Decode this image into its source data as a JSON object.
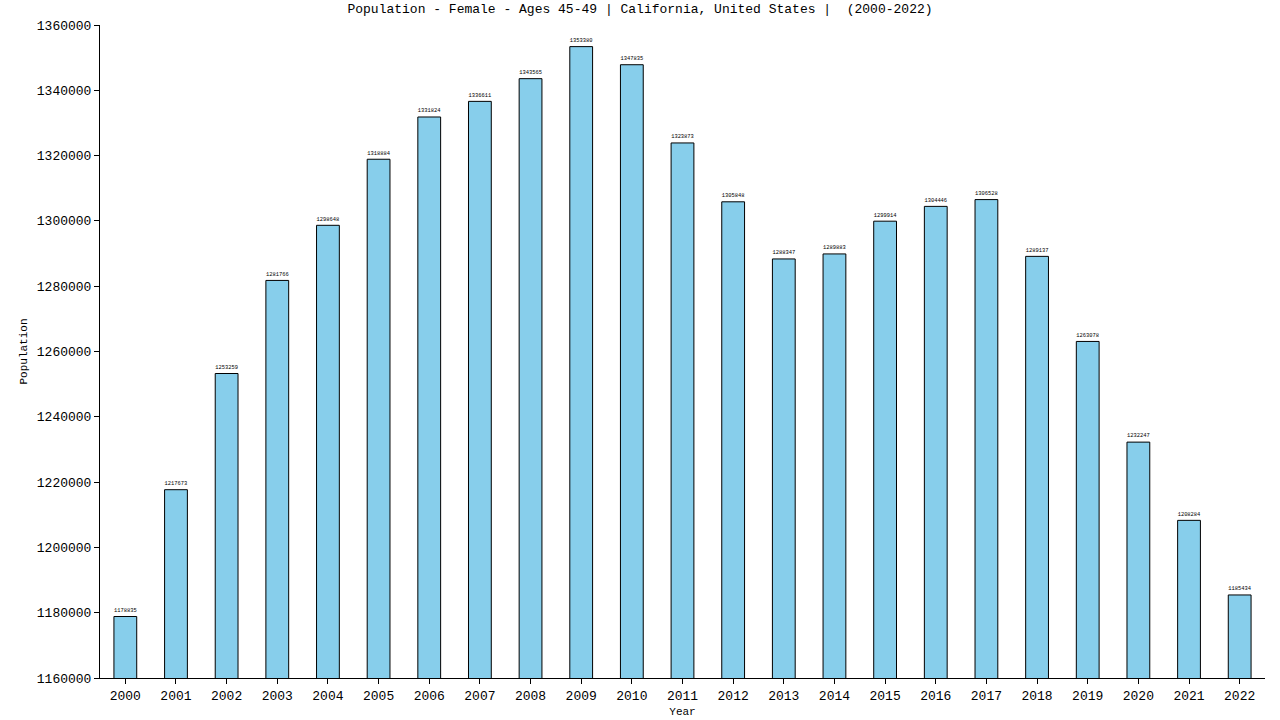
{
  "chart_data": {
    "type": "bar",
    "title": "Population - Female - Ages 45-49 | California, United States |  (2000-2022)",
    "x_label": "Year",
    "y_label": "Population",
    "categories": [
      "2000",
      "2001",
      "2002",
      "2003",
      "2004",
      "2005",
      "2006",
      "2007",
      "2008",
      "2009",
      "2010",
      "2011",
      "2012",
      "2013",
      "2014",
      "2015",
      "2016",
      "2017",
      "2018",
      "2019",
      "2020",
      "2021",
      "2022"
    ],
    "values": [
      1178835,
      1217673,
      1253259,
      1281766,
      1298648,
      1318884,
      1331824,
      1336611,
      1343565,
      1353380,
      1347835,
      1323873,
      1305848,
      1288347,
      1289883,
      1299914,
      1304446,
      1306528,
      1289137,
      1263078,
      1232247,
      1208284,
      1185434
    ],
    "color": "#87ceeb",
    "ylim": [
      1160000,
      1360000
    ],
    "yticks": [
      1160000,
      1180000,
      1200000,
      1220000,
      1240000,
      1260000,
      1280000,
      1300000,
      1320000,
      1340000,
      1360000
    ],
    "grid": false,
    "data_labels": true
  }
}
